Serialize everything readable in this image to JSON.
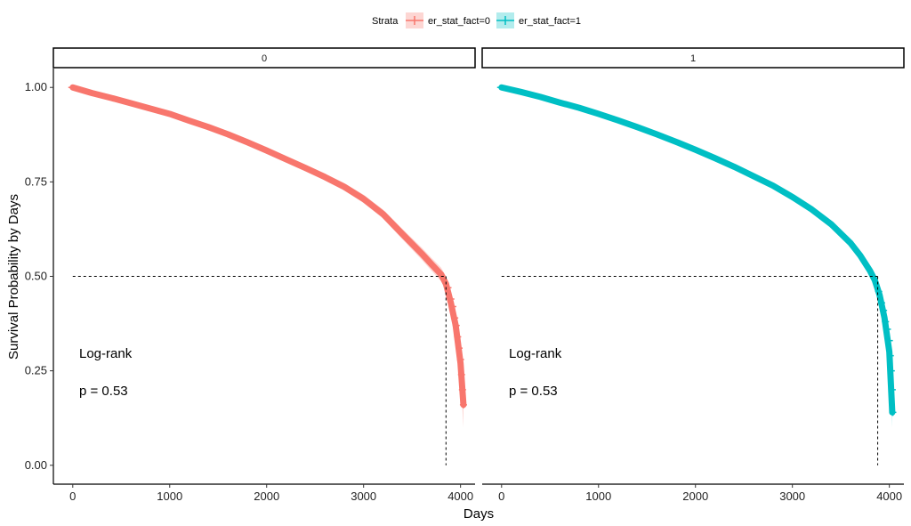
{
  "chart_data": {
    "type": "line",
    "subtype": "kaplan-meier-faceted",
    "title": "",
    "xlabel": "Days",
    "ylabel": "Survival Probability by Days",
    "xlim": [
      -200,
      4150
    ],
    "ylim": [
      -0.05,
      1.05
    ],
    "x_ticks": [
      0,
      1000,
      2000,
      3000,
      4000
    ],
    "y_ticks": [
      0.0,
      0.25,
      0.5,
      0.75,
      1.0
    ],
    "y_tick_labels": [
      "0.00",
      "0.25",
      "0.50",
      "0.75",
      "1.00"
    ],
    "legend": {
      "title": "Strata",
      "position": "top",
      "entries": [
        "er_stat_fact=0",
        "er_stat_fact=1"
      ]
    },
    "median_line_y": 0.5,
    "facets": [
      {
        "label": "0",
        "series_name": "er_stat_fact=0",
        "color": "#F8766D",
        "ci_color": "#F8766D",
        "x": [
          0,
          200,
          400,
          600,
          800,
          1000,
          1200,
          1400,
          1600,
          1800,
          2000,
          2200,
          2400,
          2600,
          2800,
          3000,
          3200,
          3400,
          3600,
          3700,
          3800,
          3850,
          3900,
          3950,
          4000,
          4030
        ],
        "y": [
          1.0,
          0.985,
          0.972,
          0.958,
          0.944,
          0.93,
          0.912,
          0.895,
          0.876,
          0.855,
          0.833,
          0.81,
          0.787,
          0.763,
          0.737,
          0.705,
          0.665,
          0.612,
          0.56,
          0.532,
          0.505,
          0.48,
          0.43,
          0.37,
          0.27,
          0.16
        ],
        "ci_halfwidth": [
          0.0,
          0.002,
          0.002,
          0.003,
          0.003,
          0.004,
          0.004,
          0.005,
          0.005,
          0.006,
          0.006,
          0.007,
          0.008,
          0.009,
          0.01,
          0.011,
          0.012,
          0.014,
          0.016,
          0.017,
          0.018,
          0.02,
          0.025,
          0.03,
          0.04,
          0.06
        ],
        "censor_x": [
          3870,
          3900,
          3920,
          3940,
          3955,
          3970,
          3985,
          4000,
          4010,
          4020,
          4030
        ],
        "censor_y": [
          0.47,
          0.44,
          0.42,
          0.39,
          0.37,
          0.34,
          0.31,
          0.28,
          0.24,
          0.2,
          0.16
        ],
        "median_x": 3850,
        "annotation": [
          "Log-rank",
          "p = 0.53"
        ]
      },
      {
        "label": "1",
        "series_name": "er_stat_fact=1",
        "color": "#00BFC4",
        "ci_color": "#00BFC4",
        "x": [
          0,
          200,
          400,
          600,
          800,
          1000,
          1200,
          1400,
          1600,
          1800,
          2000,
          2200,
          2400,
          2600,
          2800,
          3000,
          3200,
          3400,
          3600,
          3700,
          3800,
          3850,
          3900,
          3950,
          4000,
          4030
        ],
        "y": [
          1.0,
          0.988,
          0.975,
          0.96,
          0.946,
          0.93,
          0.913,
          0.895,
          0.876,
          0.856,
          0.835,
          0.813,
          0.79,
          0.765,
          0.74,
          0.71,
          0.677,
          0.638,
          0.588,
          0.555,
          0.515,
          0.49,
          0.45,
          0.39,
          0.3,
          0.14
        ],
        "ci_halfwidth": [
          0.0,
          0.002,
          0.002,
          0.002,
          0.003,
          0.003,
          0.003,
          0.004,
          0.004,
          0.004,
          0.005,
          0.005,
          0.005,
          0.006,
          0.006,
          0.007,
          0.008,
          0.009,
          0.01,
          0.011,
          0.012,
          0.013,
          0.015,
          0.018,
          0.025,
          0.04
        ],
        "censor_x": [
          3890,
          3920,
          3940,
          3960,
          3980,
          4000,
          4010,
          4020,
          4030,
          4035
        ],
        "censor_y": [
          0.46,
          0.43,
          0.41,
          0.38,
          0.36,
          0.33,
          0.29,
          0.25,
          0.2,
          0.14
        ],
        "median_x": 3880,
        "annotation": [
          "Log-rank",
          "p = 0.53"
        ]
      }
    ]
  }
}
